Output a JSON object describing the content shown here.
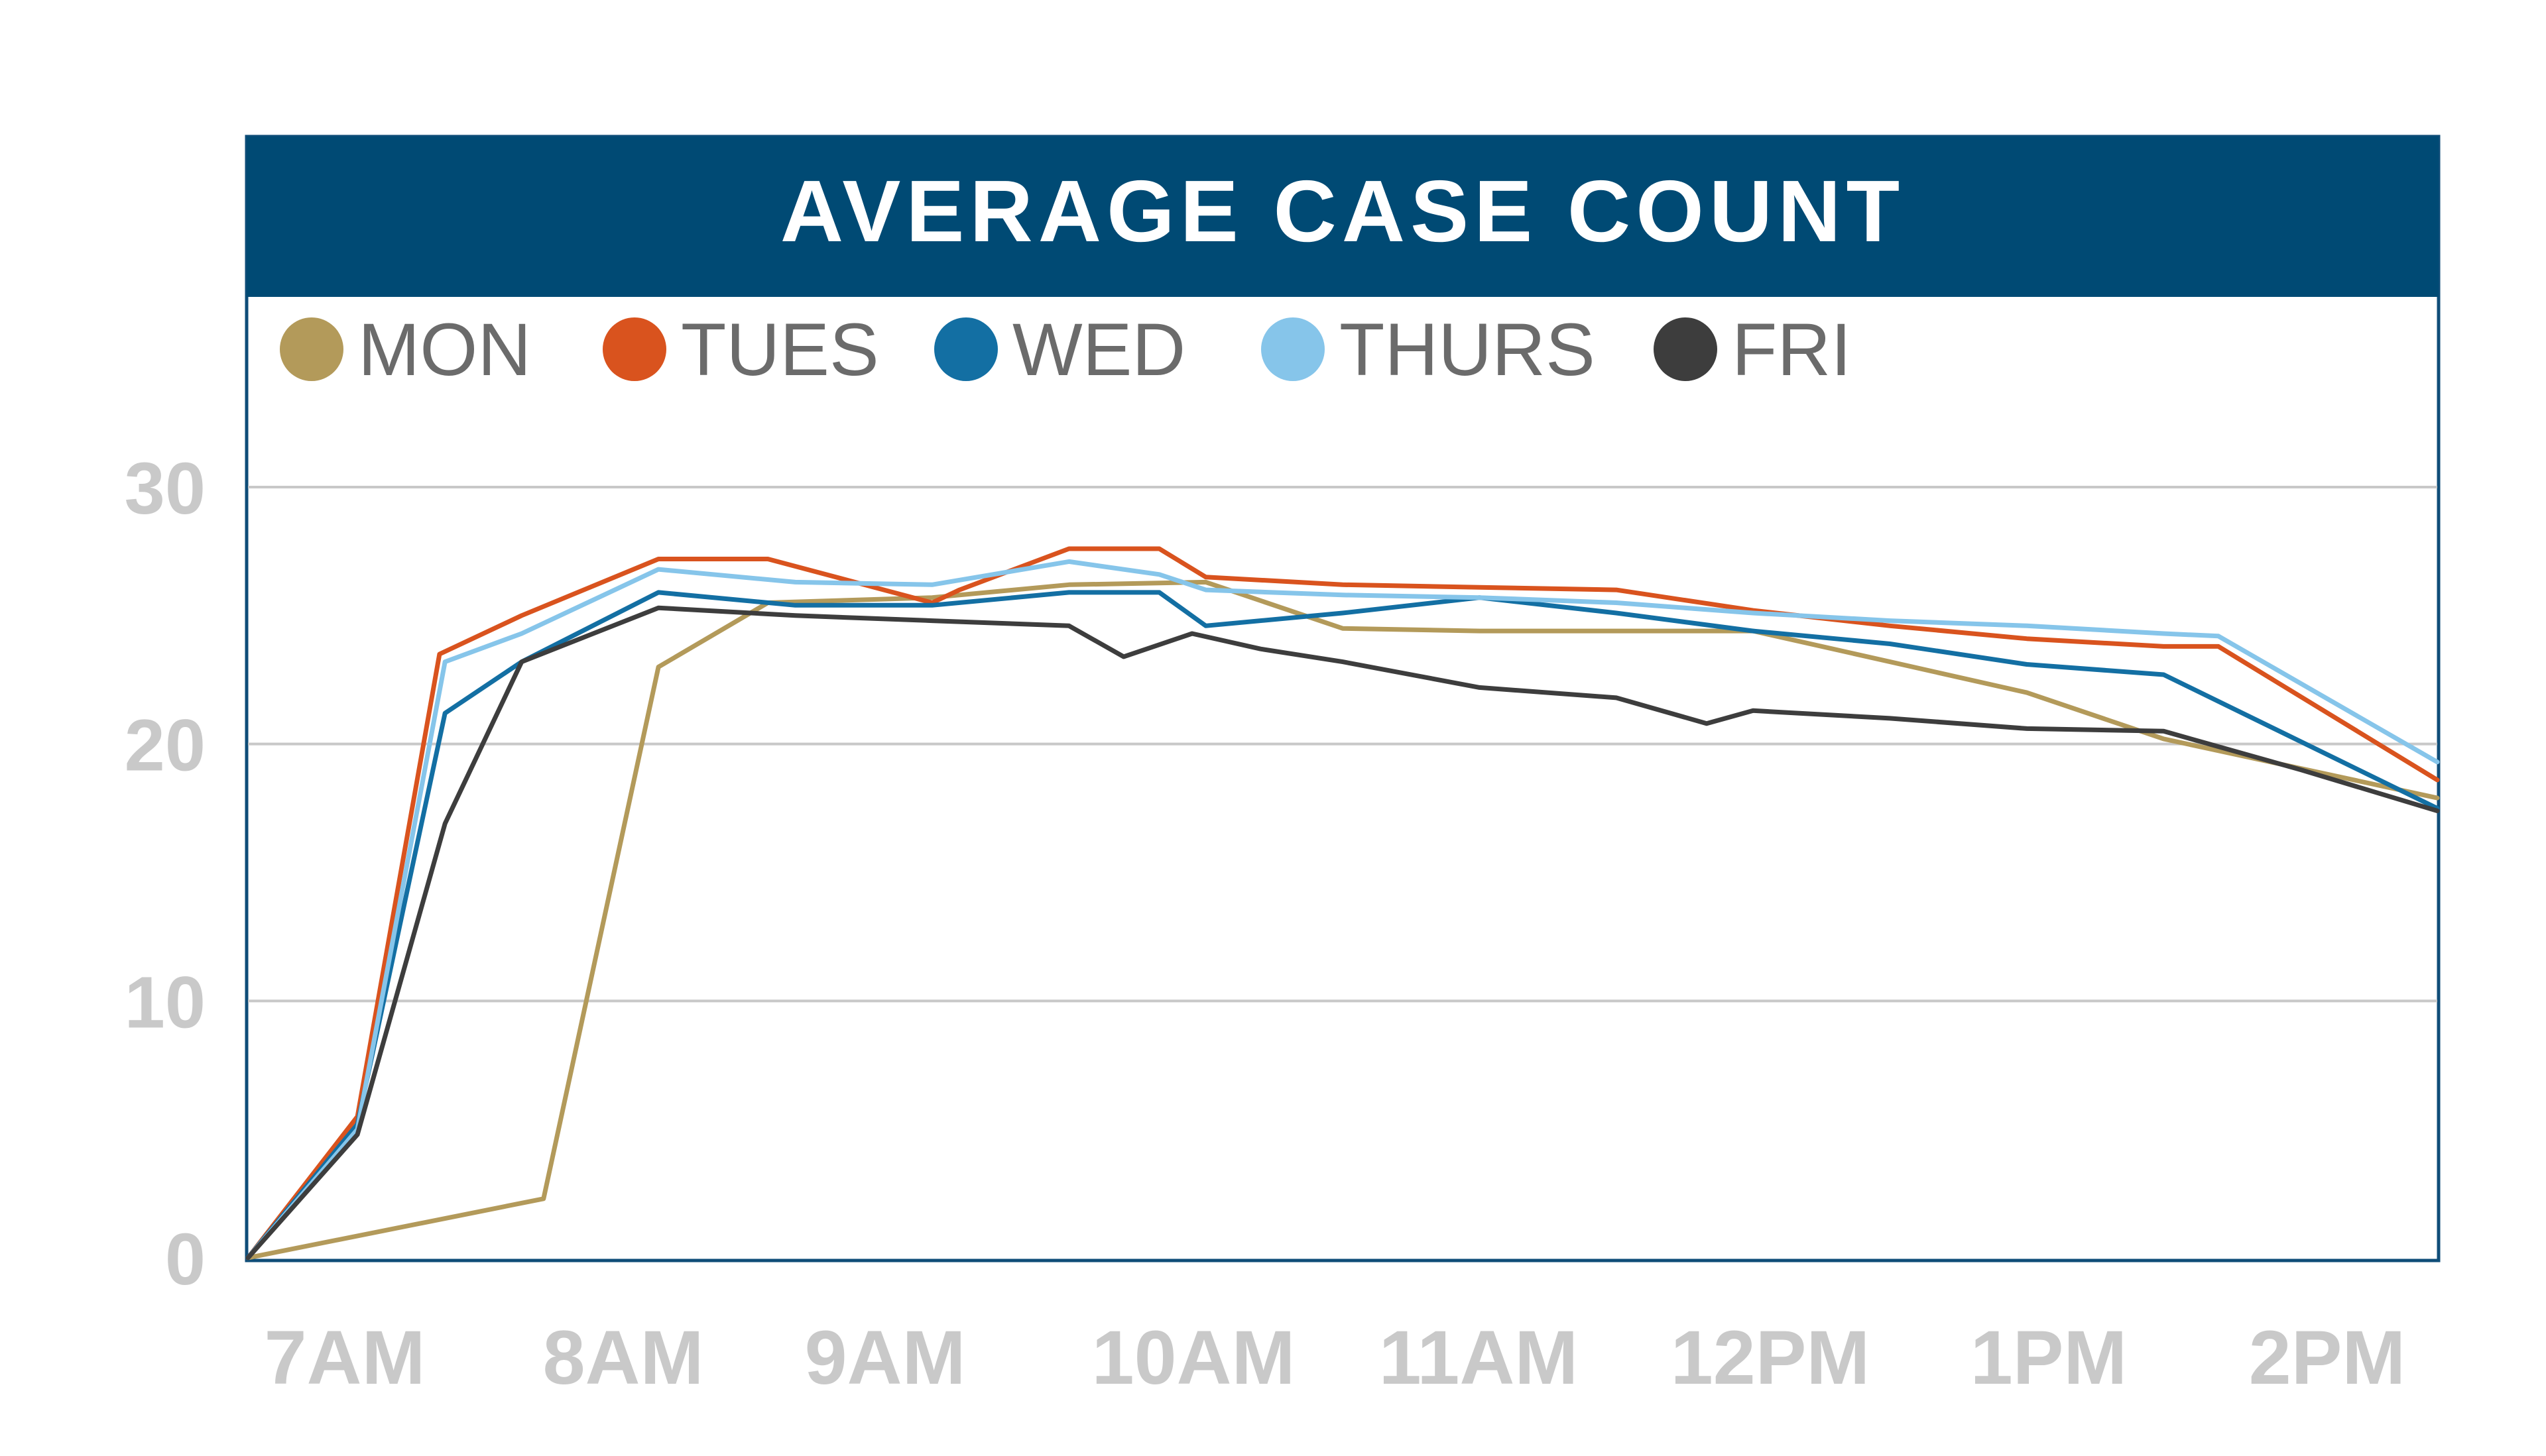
{
  "chart_data": {
    "type": "line",
    "title": "AVERAGE CASE COUNT",
    "xlabel": "",
    "ylabel": "",
    "ylim": [
      0,
      30
    ],
    "yticks": [
      0,
      10,
      20,
      30
    ],
    "xtick_labels": [
      "7AM",
      "8AM",
      "9AM",
      "10AM",
      "11AM",
      "12PM",
      "1PM",
      "2PM"
    ],
    "xlim": [
      7.0,
      15.0
    ],
    "grid": true,
    "legend": "top-left",
    "series": [
      {
        "name": "MON",
        "color": "#b39a5a",
        "x": [
          7.0,
          8.08,
          8.5,
          8.9,
          9.5,
          10.0,
          10.5,
          11.0,
          11.5,
          12.0,
          12.5,
          13.0,
          13.5,
          14.0,
          15.0
        ],
        "y": [
          0,
          2.3,
          23.0,
          25.5,
          25.7,
          26.2,
          26.3,
          24.5,
          24.4,
          24.4,
          24.4,
          23.2,
          22.0,
          20.2,
          17.9
        ]
      },
      {
        "name": "TUES",
        "color": "#d9531e",
        "x": [
          7.0,
          7.4,
          7.7,
          8.0,
          8.5,
          8.9,
          9.5,
          9.6,
          10.0,
          10.33,
          10.5,
          11.0,
          11.5,
          12.0,
          12.5,
          13.0,
          13.5,
          14.0,
          14.2,
          15.0
        ],
        "y": [
          0,
          5.5,
          23.5,
          25.0,
          27.2,
          27.2,
          25.5,
          26.0,
          27.6,
          27.6,
          26.5,
          26.2,
          26.1,
          26.0,
          25.2,
          24.6,
          24.1,
          23.8,
          23.8,
          18.6
        ]
      },
      {
        "name": "WED",
        "color": "#136fa3",
        "x": [
          7.0,
          7.4,
          7.72,
          8.0,
          8.5,
          9.0,
          9.5,
          10.0,
          10.33,
          10.5,
          11.0,
          11.5,
          12.0,
          12.5,
          13.0,
          13.5,
          14.0,
          15.0
        ],
        "y": [
          0,
          5.2,
          21.2,
          23.2,
          25.9,
          25.4,
          25.4,
          25.9,
          25.9,
          24.6,
          25.1,
          25.7,
          25.1,
          24.4,
          23.9,
          23.1,
          22.7,
          17.5
        ]
      },
      {
        "name": "THURS",
        "color": "#86c5ea",
        "x": [
          7.0,
          7.4,
          7.72,
          8.0,
          8.5,
          9.0,
          9.5,
          10.0,
          10.33,
          10.5,
          11.0,
          11.5,
          12.0,
          12.5,
          13.0,
          13.5,
          14.0,
          14.2,
          15.0
        ],
        "y": [
          0,
          5.0,
          23.2,
          24.3,
          26.8,
          26.3,
          26.2,
          27.1,
          26.6,
          26.0,
          25.8,
          25.7,
          25.5,
          25.1,
          24.8,
          24.6,
          24.3,
          24.2,
          19.3
        ]
      },
      {
        "name": "FRI",
        "color": "#3d3d3d",
        "x": [
          7.0,
          7.4,
          7.72,
          8.0,
          8.5,
          9.0,
          9.5,
          10.0,
          10.2,
          10.45,
          10.7,
          11.0,
          11.5,
          12.0,
          12.33,
          12.5,
          13.0,
          13.5,
          14.0,
          14.5,
          15.0
        ],
        "y": [
          0,
          4.8,
          16.9,
          23.2,
          25.3,
          25.0,
          24.8,
          24.6,
          23.4,
          24.3,
          23.7,
          23.2,
          22.2,
          21.8,
          20.8,
          21.3,
          21.0,
          20.6,
          20.5,
          19.0,
          17.4
        ]
      }
    ]
  }
}
